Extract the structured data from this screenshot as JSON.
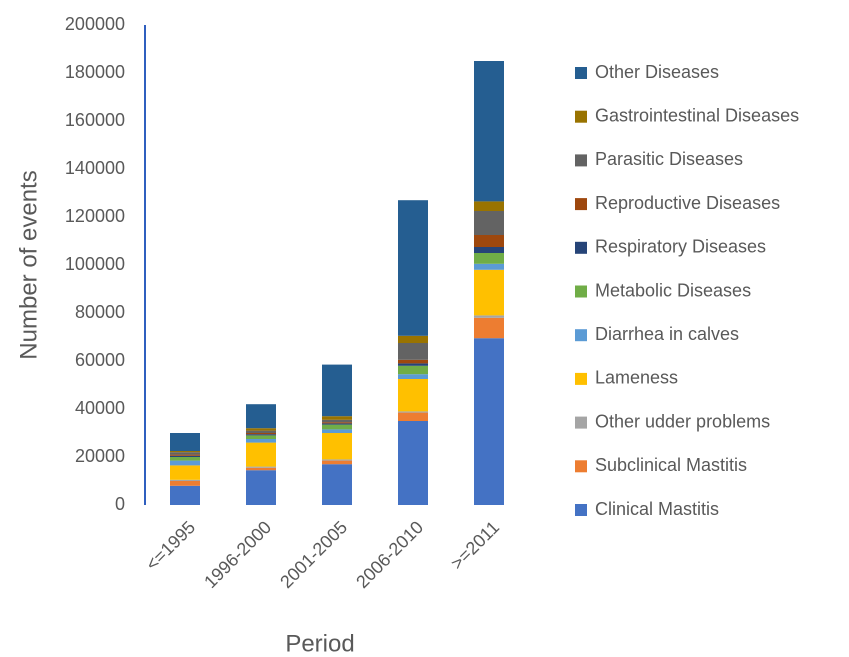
{
  "chart_data": {
    "type": "stacked_bar",
    "x_label": "Period",
    "y_label": "Number of events",
    "categories": [
      "<=1995",
      "1996-2000",
      "2001-2005",
      "2006-2010",
      ">=2011"
    ],
    "series": [
      {
        "name": "Clinical Mastitis",
        "color": "#4472c4",
        "values": [
          8000,
          14500,
          17000,
          35000,
          69500
        ]
      },
      {
        "name": "Subclinical Mastitis",
        "color": "#ed7d31",
        "values": [
          2000,
          1000,
          1500,
          3500,
          8500
        ]
      },
      {
        "name": "Other udder problems",
        "color": "#a5a5a5",
        "values": [
          500,
          500,
          500,
          500,
          1000
        ]
      },
      {
        "name": "Lameness",
        "color": "#ffc000",
        "values": [
          6000,
          10000,
          11000,
          13500,
          19000
        ]
      },
      {
        "name": "Diarrhea in calves",
        "color": "#5b9bd5",
        "values": [
          2000,
          1500,
          1500,
          2000,
          2500
        ]
      },
      {
        "name": "Metabolic Diseases",
        "color": "#70ad47",
        "values": [
          1500,
          1500,
          2000,
          3500,
          4500
        ]
      },
      {
        "name": "Respiratory Diseases",
        "color": "#264478",
        "values": [
          500,
          500,
          500,
          1000,
          2500
        ]
      },
      {
        "name": "Reproductive Diseases",
        "color": "#9e480e",
        "values": [
          500,
          500,
          500,
          1500,
          5000
        ]
      },
      {
        "name": "Parasitic Diseases",
        "color": "#636363",
        "values": [
          1000,
          1000,
          1000,
          7000,
          10000
        ]
      },
      {
        "name": "Gastrointestinal Diseases",
        "color": "#997300",
        "values": [
          500,
          1000,
          1500,
          3000,
          4000
        ]
      },
      {
        "name": "Other Diseases",
        "color": "#255e91",
        "values": [
          7500,
          10000,
          21500,
          56500,
          58500
        ]
      }
    ],
    "ylim": [
      0,
      200000
    ],
    "yticks": [
      0,
      20000,
      40000,
      60000,
      80000,
      100000,
      120000,
      140000,
      160000,
      180000,
      200000
    ],
    "grid": false,
    "legend": "right"
  }
}
